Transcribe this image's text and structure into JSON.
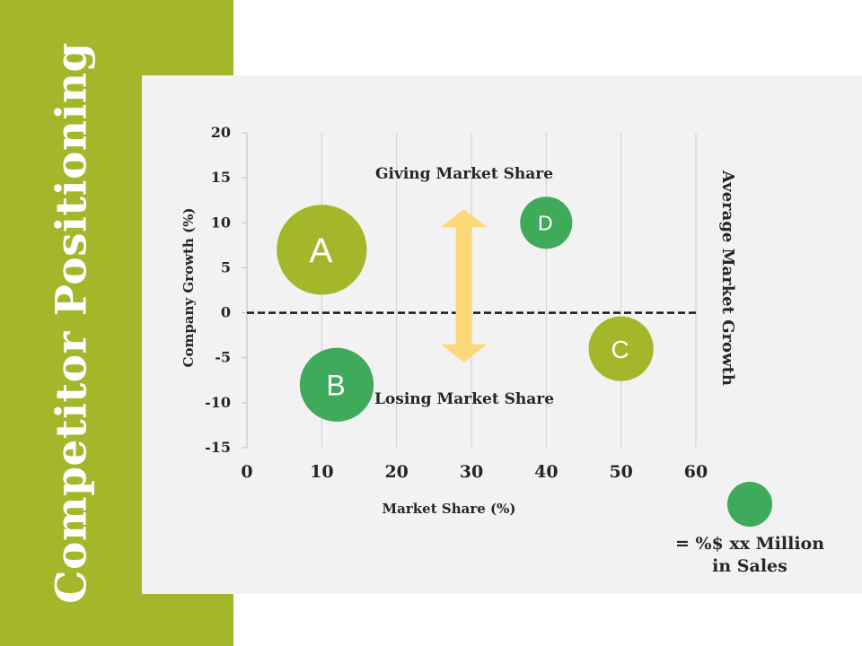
{
  "page_title": "Competitor Positioning",
  "colors": {
    "sidebar": "#a4b72a",
    "panel": "#f2f2f2",
    "lime": "#a4b72a",
    "green": "#3faa5a",
    "arrow": "#fcd87a",
    "text": "#262626"
  },
  "chart_data": {
    "type": "bubble",
    "xlabel": "Market Share (%)",
    "ylabel": "Company Growth (%)",
    "xlim": [
      0,
      60
    ],
    "ylim": [
      -15,
      20
    ],
    "x_ticks": [
      "0",
      "10",
      "20",
      "30",
      "40",
      "50",
      "60"
    ],
    "y_ticks": [
      "20",
      "15",
      "10",
      "5",
      "0",
      "-5",
      "-10",
      "-15"
    ],
    "grid": "vertical",
    "reference_line": {
      "y": 0,
      "style": "dashed",
      "label": "Average Market Growth"
    },
    "annotations": [
      {
        "text": "Giving Market Share",
        "x": 30,
        "y": 15.5
      },
      {
        "text": "Losing Market Share",
        "x": 30,
        "y": -9.5
      }
    ],
    "arrow": {
      "x": 29,
      "y_from": 11.5,
      "y_to": -5.5,
      "direction": "both"
    },
    "bubbles": [
      {
        "label": "A",
        "x": 10,
        "y": 7,
        "size": 5,
        "color": "lime"
      },
      {
        "label": "B",
        "x": 12,
        "y": -8,
        "size": 4.1,
        "color": "green"
      },
      {
        "label": "C",
        "x": 50,
        "y": -4,
        "size": 3.6,
        "color": "lime"
      },
      {
        "label": "D",
        "x": 40,
        "y": 10,
        "size": 2.9,
        "color": "green"
      }
    ]
  },
  "legend": {
    "line1": "= %$ xx Million",
    "line2": "in Sales"
  }
}
